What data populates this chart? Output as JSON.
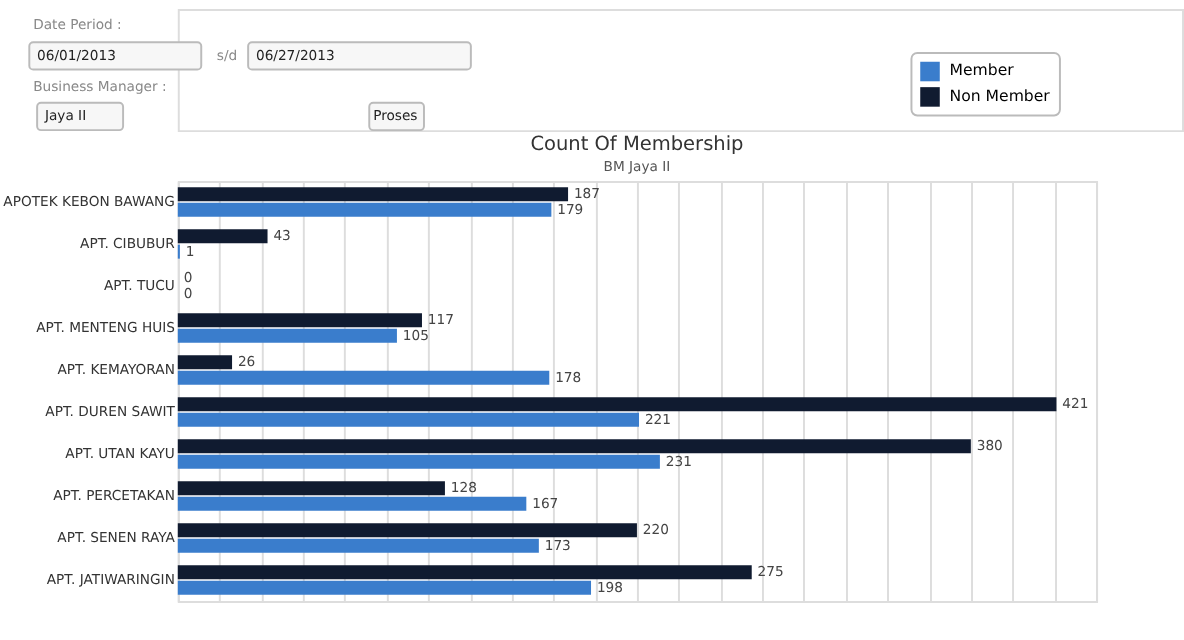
{
  "chart_data": {
    "type": "bar",
    "orientation": "horizontal",
    "title": "Count Of Membership",
    "subtitle": "BM Jaya II",
    "categories": [
      "APOTEK KEBON BAWANG",
      "APT. CIBUBUR",
      "APT. TUCU",
      "APT. MENTENG HUIS",
      "APT. KEMAYORAN",
      "APT. DUREN SAWIT",
      "APT. UTAN KAYU",
      "APT. PERCETAKAN",
      "APT. SENEN RAYA",
      "APT. JATIWARINGIN"
    ],
    "series": [
      {
        "name": "Member",
        "color": "#3a7dcc",
        "values": [
          179,
          1,
          0,
          105,
          178,
          221,
          231,
          167,
          173,
          198
        ]
      },
      {
        "name": "Non Member",
        "color": "#101b30",
        "values": [
          187,
          43,
          0,
          117,
          26,
          421,
          380,
          128,
          220,
          275
        ]
      }
    ],
    "xlim": [
      0,
      440
    ],
    "grid": "x",
    "legend": "top right",
    "data_labels": true,
    "tick_labels": "y",
    "annotations": [
      "Date Period :",
      "06/01/2013",
      "s/d",
      "06/27/2013",
      "Business Manager :",
      "Jaya II",
      "Proses"
    ]
  }
}
